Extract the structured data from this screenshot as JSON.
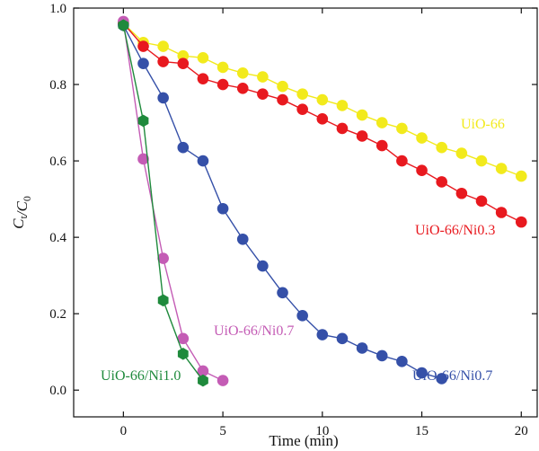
{
  "chart_data": {
    "type": "scatter",
    "xlabel": "Time (min)",
    "ylabel": "C_t/C_0",
    "xlim": [
      -2.5,
      20.8
    ],
    "ylim": [
      -0.07,
      1.0
    ],
    "x_ticks": [
      0,
      5,
      10,
      15,
      20
    ],
    "x_tick_labels": [
      "0",
      "5",
      "10",
      "15",
      "20"
    ],
    "y_ticks": [
      0.0,
      0.2,
      0.4,
      0.6,
      0.8,
      1.0
    ],
    "y_tick_labels": [
      "0.0",
      "0.2",
      "0.4",
      "0.6",
      "0.8",
      "1.0"
    ],
    "grid": false,
    "series": [
      {
        "name": "UiO-66",
        "color": "#f2ea1c",
        "marker": "circle",
        "x": [
          0,
          1,
          2,
          3,
          4,
          5,
          6,
          7,
          8,
          9,
          10,
          11,
          12,
          13,
          14,
          15,
          16,
          17,
          18,
          19,
          20
        ],
        "y": [
          0.96,
          0.91,
          0.9,
          0.875,
          0.87,
          0.845,
          0.83,
          0.82,
          0.795,
          0.775,
          0.76,
          0.745,
          0.72,
          0.7,
          0.685,
          0.66,
          0.635,
          0.62,
          0.6,
          0.58,
          0.56
        ]
      },
      {
        "name": "UiO-66/Ni0.3",
        "color": "#e8191f",
        "marker": "circle",
        "x": [
          0,
          1,
          2,
          3,
          4,
          5,
          6,
          7,
          8,
          9,
          10,
          11,
          12,
          13,
          14,
          15,
          16,
          17,
          18,
          19,
          20
        ],
        "y": [
          0.96,
          0.9,
          0.86,
          0.855,
          0.815,
          0.8,
          0.79,
          0.775,
          0.76,
          0.735,
          0.71,
          0.685,
          0.665,
          0.64,
          0.6,
          0.575,
          0.545,
          0.515,
          0.495,
          0.465,
          0.44
        ]
      },
      {
        "name": "UiO-66/Ni0.7",
        "color": "#3550a8",
        "marker": "circle",
        "x": [
          0,
          1,
          2,
          3,
          4,
          5,
          6,
          7,
          8,
          9,
          10,
          11,
          12,
          13,
          14,
          15,
          16
        ],
        "y": [
          0.955,
          0.855,
          0.765,
          0.635,
          0.6,
          0.475,
          0.395,
          0.325,
          0.255,
          0.195,
          0.145,
          0.135,
          0.11,
          0.09,
          0.075,
          0.045,
          0.03
        ]
      },
      {
        "name": "UiO-66/Ni0.7",
        "color": "#c45cb5",
        "marker": "circle",
        "x": [
          0,
          1,
          2,
          3,
          4,
          5
        ],
        "y": [
          0.965,
          0.605,
          0.345,
          0.135,
          0.05,
          0.025
        ]
      },
      {
        "name": "UiO-66/Ni1.0",
        "color": "#1f8a3c",
        "marker": "hexagon",
        "x": [
          0,
          1,
          2,
          3,
          4
        ],
        "y": [
          0.955,
          0.705,
          0.235,
          0.095,
          0.025
        ]
      }
    ]
  }
}
